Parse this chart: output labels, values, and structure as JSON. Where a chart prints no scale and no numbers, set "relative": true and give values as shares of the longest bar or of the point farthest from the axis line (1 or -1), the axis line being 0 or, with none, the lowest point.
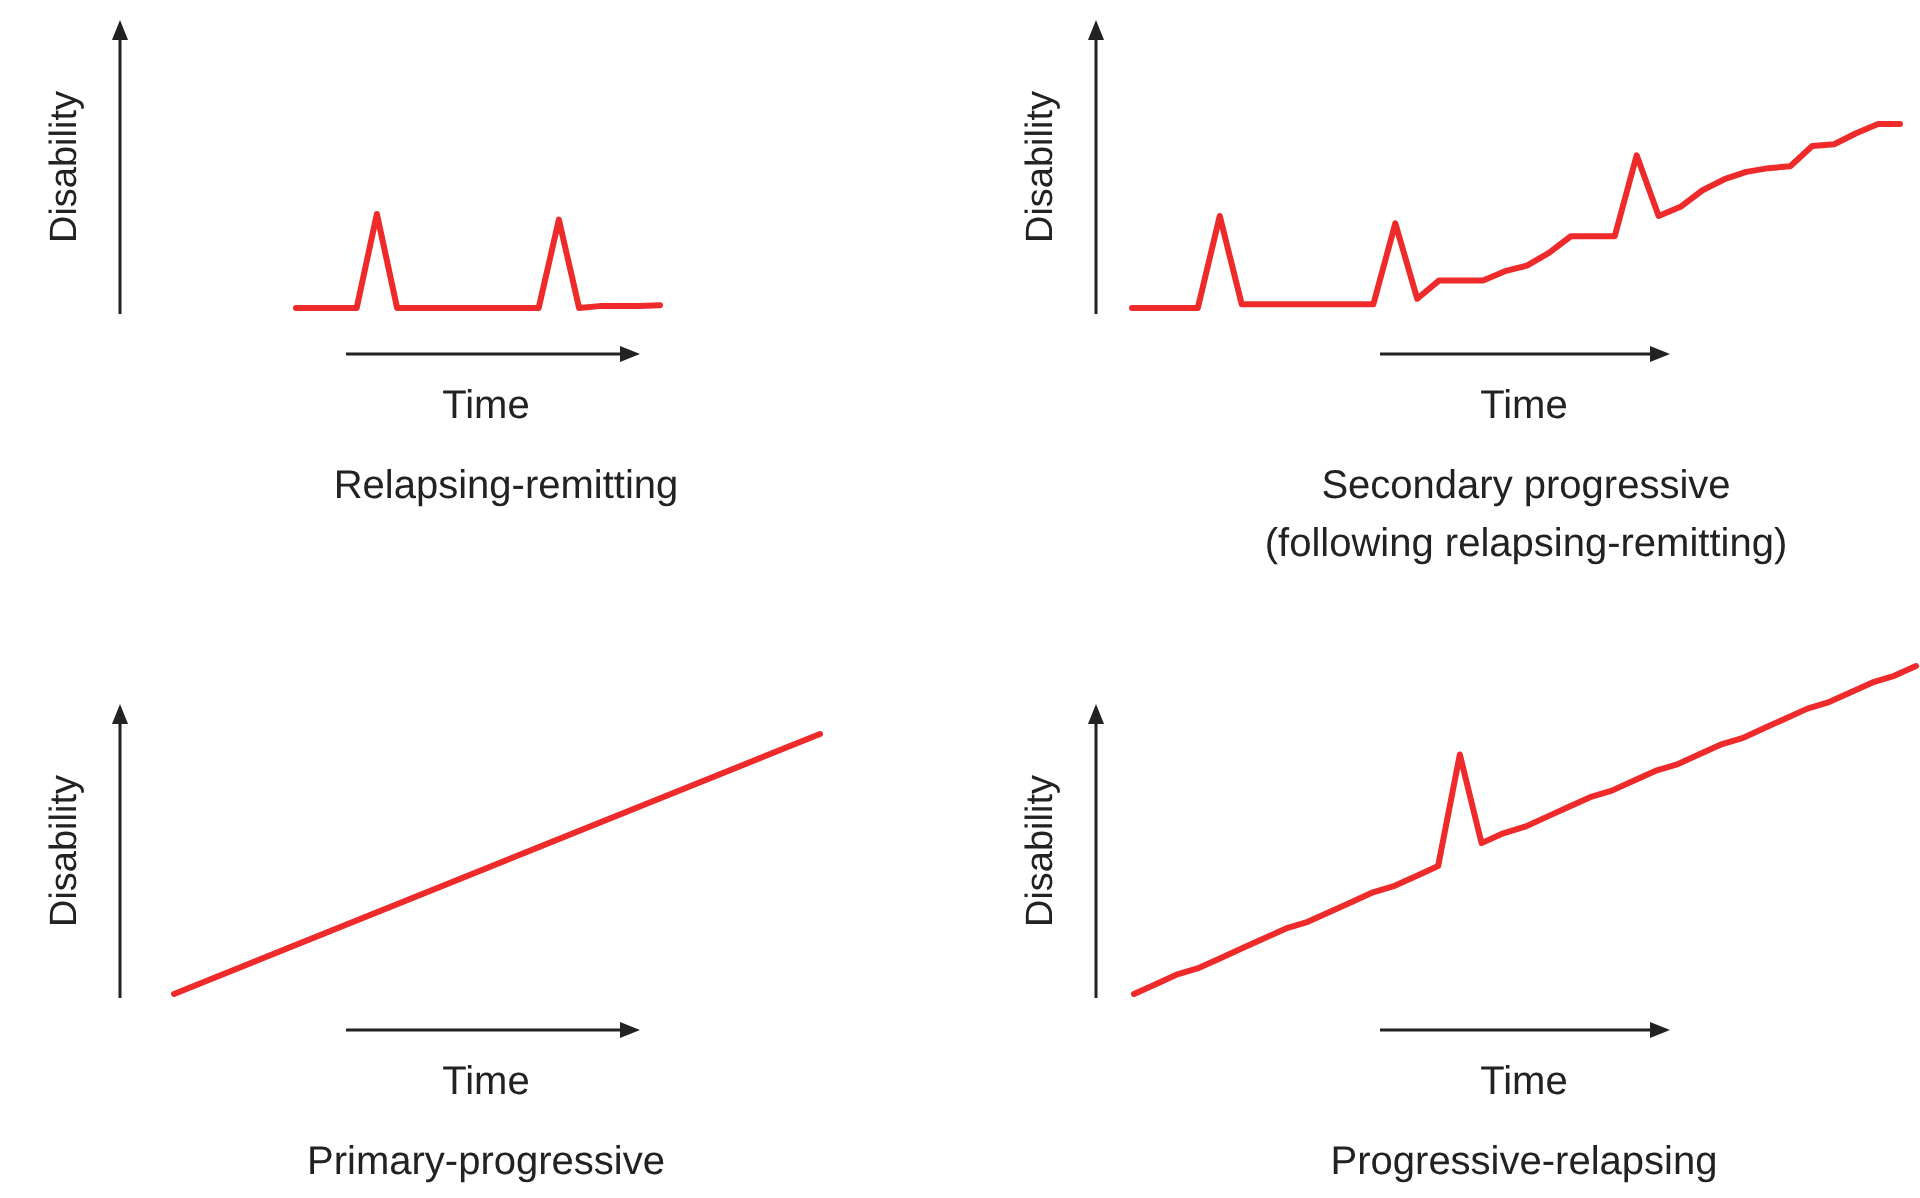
{
  "chart_data": [
    {
      "type": "line",
      "title": "Relapsing-remitting",
      "xlabel": "Time",
      "ylabel": "Disability",
      "relative": true,
      "color": "#ee2a2a",
      "categories": [
        null,
        null,
        null,
        null,
        null,
        null,
        null,
        null,
        null,
        null,
        null,
        null,
        null,
        null,
        null,
        null,
        null,
        null,
        null
      ],
      "values": [
        0,
        0,
        0,
        0,
        1,
        0,
        0,
        0,
        0,
        0,
        0,
        0,
        0,
        0.94,
        0,
        0.02,
        0.02,
        0.02,
        0.03
      ]
    },
    {
      "type": "line",
      "title": "Secondary progressive",
      "subtitle": "(following relapsing-remitting)",
      "xlabel": "Time",
      "ylabel": "Disability",
      "relative": true,
      "color": "#ee2a2a",
      "categories": [
        null,
        null,
        null,
        null,
        null,
        null,
        null,
        null,
        null,
        null,
        null,
        null,
        null,
        null,
        null,
        null,
        null,
        null,
        null,
        null,
        null,
        null,
        null,
        null,
        null,
        null,
        null,
        null,
        null,
        null,
        null,
        null,
        null,
        null,
        null,
        null
      ],
      "values": [
        0,
        0,
        0,
        0,
        0.5,
        0.02,
        0.02,
        0.02,
        0.02,
        0.02,
        0.02,
        0.02,
        0.46,
        0.05,
        0.15,
        0.15,
        0.15,
        0.2,
        0.23,
        0.3,
        0.39,
        0.39,
        0.39,
        0.83,
        0.5,
        0.55,
        0.64,
        0.7,
        0.74,
        0.76,
        0.77,
        0.88,
        0.89,
        0.95,
        1,
        1
      ]
    },
    {
      "type": "line",
      "title": "Primary-progressive",
      "xlabel": "Time",
      "ylabel": "Disability",
      "relative": true,
      "color": "#ee2a2a",
      "categories": [
        null,
        null
      ],
      "values": [
        0,
        1
      ]
    },
    {
      "type": "line",
      "title": "Progressive-relapsing",
      "xlabel": "Time",
      "ylabel": "Disability",
      "relative": true,
      "color": "#ee2a2a",
      "categories": [
        null,
        null,
        null,
        null,
        null,
        null,
        null,
        null,
        null,
        null,
        null,
        null,
        null,
        null,
        null,
        null,
        null,
        null,
        null,
        null,
        null,
        null,
        null,
        null,
        null,
        null,
        null,
        null,
        null,
        null,
        null,
        null,
        null,
        null,
        null,
        null,
        null
      ],
      "values": [
        0,
        0.03,
        0.06,
        0.08,
        0.11,
        0.14,
        0.17,
        0.2,
        0.22,
        0.25,
        0.28,
        0.31,
        0.33,
        0.36,
        0.39,
        0.73,
        0.46,
        0.49,
        0.51,
        0.54,
        0.57,
        0.6,
        0.62,
        0.65,
        0.68,
        0.7,
        0.73,
        0.76,
        0.78,
        0.81,
        0.84,
        0.87,
        0.89,
        0.92,
        0.95,
        0.97,
        1
      ]
    }
  ]
}
